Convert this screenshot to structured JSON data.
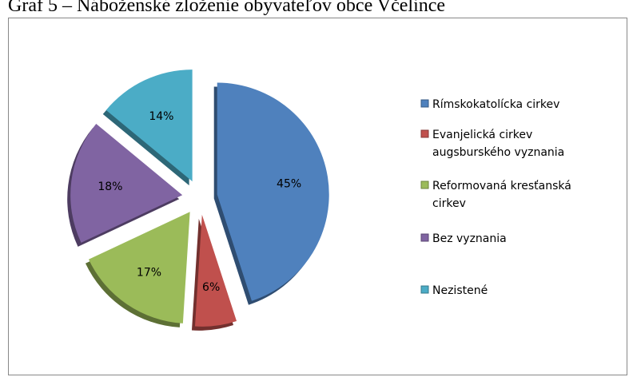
{
  "chart_data": {
    "type": "pie",
    "title": "Graf 5 – Náboženské zloženie obyvateľov obce Včelince",
    "categories": [
      "Rímskokatolícka cirkev",
      "Evanjelická cirkev augsburského vyznania",
      "Reformovaná kresťanská cirkev",
      "Bez vyznania",
      "Nezistené"
    ],
    "values": [
      45,
      6,
      17,
      18,
      14
    ],
    "value_labels": [
      "45%",
      "6%",
      "17%",
      "18%",
      "14%"
    ],
    "colors": [
      "#4f81bd",
      "#c0504d",
      "#9bbb59",
      "#8064a2",
      "#4bacc6"
    ],
    "legend": "right"
  }
}
